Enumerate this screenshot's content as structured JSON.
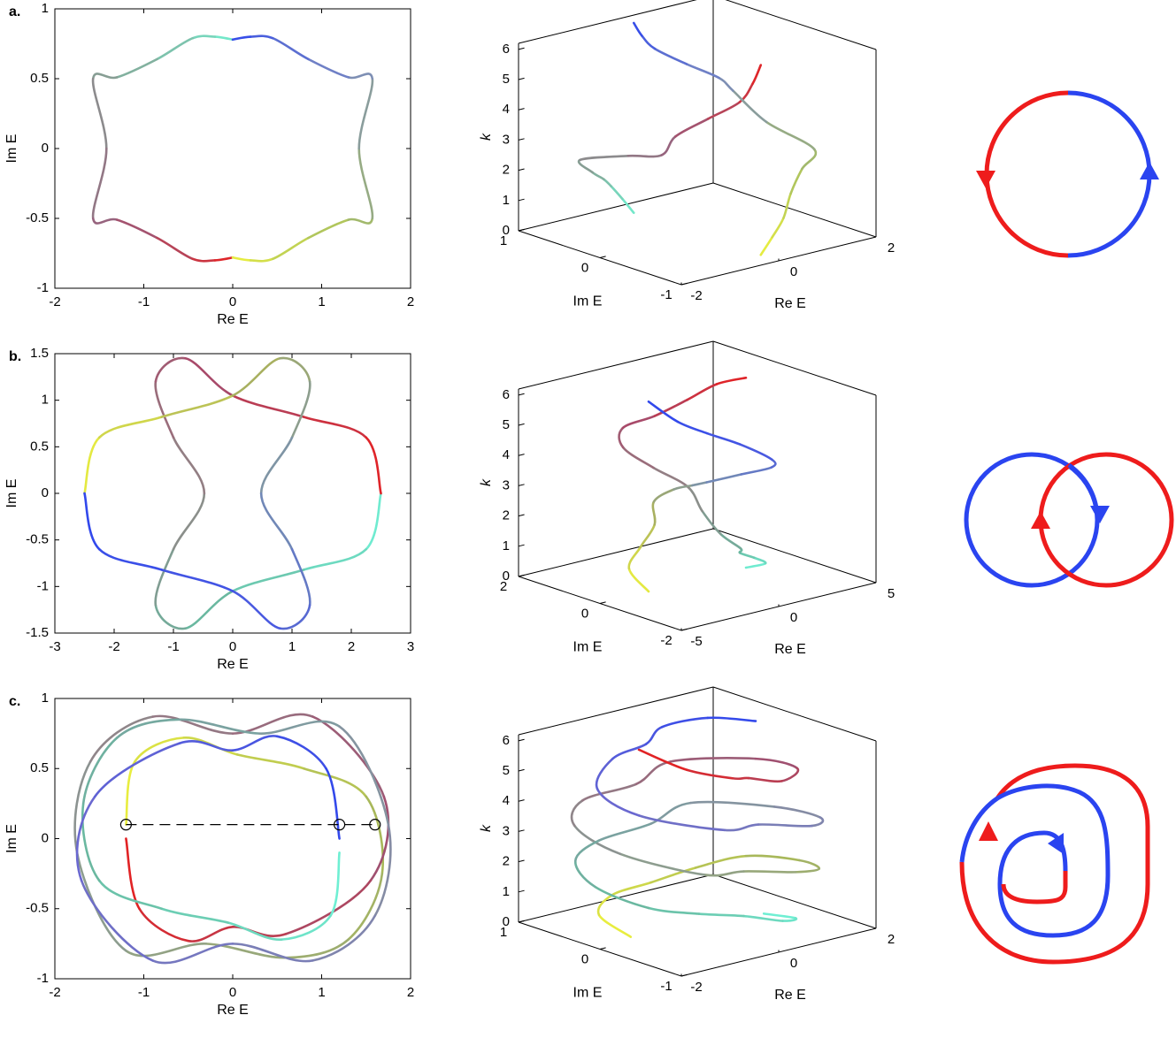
{
  "chart_data": [
    {
      "type": "line",
      "label": "a.",
      "xlabel": "Re E",
      "ylabel": "Im E",
      "zlabel": "k",
      "xlim": [
        -2,
        2
      ],
      "xticks": [
        -2,
        -1,
        0,
        1,
        2
      ],
      "ylim": [
        -1,
        1
      ],
      "yticks": [
        -1,
        -0.5,
        0,
        0.5,
        1
      ],
      "xlim3d": [
        -2,
        2
      ],
      "xticks3d": [
        -2,
        0,
        2
      ],
      "ylim3d": [
        -1,
        1
      ],
      "yticks3d": [
        -1,
        0,
        1
      ],
      "zlim": [
        0,
        6.2
      ],
      "zticks": [
        0,
        1,
        2,
        3,
        4,
        5,
        6
      ],
      "k": [
        0,
        0.52,
        1.05,
        1.57,
        2.09,
        2.62,
        3.14,
        3.67,
        4.19,
        4.71,
        5.24,
        5.76,
        6.28
      ],
      "series": [
        {
          "colors": [
            "#70f0d0",
            "#84a898",
            "#9a5a7a",
            "#e81e1e"
          ],
          "re": [
            0,
            -0.2,
            -0.45,
            -0.85,
            -1.3,
            -1.57,
            -1.42,
            -1.57,
            -1.3,
            -0.85,
            -0.45,
            -0.2,
            0
          ],
          "im": [
            0.78,
            0.8,
            0.79,
            0.64,
            0.51,
            0.5,
            0,
            -0.5,
            -0.51,
            -0.64,
            -0.79,
            -0.8,
            -0.78
          ]
        },
        {
          "colors": [
            "#eef23c",
            "#a8c060",
            "#7888c0",
            "#2e46ee"
          ],
          "re": [
            0,
            0.2,
            0.45,
            0.85,
            1.3,
            1.57,
            1.42,
            1.57,
            1.3,
            0.85,
            0.45,
            0.2,
            0
          ],
          "im": [
            -0.78,
            -0.8,
            -0.79,
            -0.64,
            -0.51,
            -0.5,
            0,
            0.5,
            0.51,
            0.64,
            0.79,
            0.8,
            0.78
          ]
        }
      ]
    },
    {
      "type": "line",
      "label": "b.",
      "xlabel": "Re E",
      "ylabel": "Im E",
      "zlabel": "k",
      "xlim": [
        -3,
        3
      ],
      "xticks": [
        -3,
        -2,
        -1,
        0,
        1,
        2,
        3
      ],
      "ylim": [
        -1.5,
        1.5
      ],
      "yticks": [
        -1.5,
        -1,
        -0.5,
        0,
        0.5,
        1,
        1.5
      ],
      "xlim3d": [
        -5,
        5
      ],
      "xticks3d": [
        -5,
        0,
        5
      ],
      "ylim3d": [
        -2,
        2
      ],
      "yticks3d": [
        -2,
        0,
        2
      ],
      "zlim": [
        0,
        6.2
      ],
      "zticks": [
        0,
        1,
        2,
        3,
        4,
        5,
        6
      ],
      "k": [
        0,
        0.45,
        0.9,
        1.35,
        1.8,
        2.24,
        2.69,
        3.14,
        3.59,
        4.04,
        4.49,
        4.94,
        5.39,
        5.84,
        6.28
      ],
      "series": [
        {
          "colors": [
            "#70f4d8",
            "#6ab8a0",
            "#908888",
            "#a84a6a",
            "#e81e1e"
          ],
          "re": [
            2.5,
            2.25,
            1.2,
            0,
            -0.8,
            -1.3,
            -1.0,
            -0.48,
            -1.0,
            -1.3,
            -0.8,
            0,
            1.2,
            2.25,
            2.5
          ],
          "im": [
            0,
            -0.6,
            -0.82,
            -1.05,
            -1.45,
            -1.2,
            -0.6,
            0,
            0.6,
            1.2,
            1.45,
            1.05,
            0.82,
            0.6,
            0
          ]
        },
        {
          "colors": [
            "#eef23c",
            "#a8b060",
            "#7890b0",
            "#4a5ae0",
            "#2e46ee"
          ],
          "re": [
            -2.5,
            -2.25,
            -1.2,
            0,
            0.8,
            1.3,
            1.0,
            0.48,
            1.0,
            1.3,
            0.8,
            0,
            -1.2,
            -2.25,
            -2.5
          ],
          "im": [
            0,
            0.6,
            0.82,
            1.05,
            1.45,
            1.2,
            0.6,
            0,
            -0.6,
            -1.2,
            -1.45,
            -1.05,
            -0.82,
            -0.6,
            0
          ]
        }
      ]
    },
    {
      "type": "line",
      "label": "c.",
      "xlabel": "Re E",
      "ylabel": "Im E",
      "zlabel": "k",
      "xlim": [
        -2,
        2
      ],
      "xticks": [
        -2,
        -1,
        0,
        1,
        2
      ],
      "ylim": [
        -1,
        1
      ],
      "yticks": [
        -1,
        -0.5,
        0,
        0.5,
        1
      ],
      "xlim3d": [
        -2,
        2
      ],
      "xticks3d": [
        -2,
        0,
        2
      ],
      "ylim3d": [
        -1,
        1
      ],
      "yticks3d": [
        -1,
        0,
        1
      ],
      "zlim": [
        0,
        6.2
      ],
      "zticks": [
        0,
        1,
        2,
        3,
        4,
        5,
        6
      ],
      "k": [
        0,
        0.29,
        0.57,
        0.86,
        1.14,
        1.43,
        1.71,
        2.0,
        2.28,
        2.57,
        2.86,
        3.14,
        3.43,
        3.71,
        4.0,
        4.28,
        4.57,
        4.85,
        5.14,
        5.43,
        5.71,
        6.0,
        6.28
      ],
      "series": [
        {
          "colors": [
            "#eef23c",
            "#a8b85a",
            "#8a9a94",
            "#a05070",
            "#e81e1e"
          ],
          "re": [
            -1.2,
            -1.1,
            -0.55,
            0.05,
            0.8,
            1.5,
            1.68,
            1.3,
            0.6,
            -0.3,
            -1.2,
            -1.75,
            -1.6,
            -0.9,
            0,
            0.9,
            1.7,
            1.55,
            0.6,
            0,
            -0.5,
            -1.05,
            -1.2
          ],
          "im": [
            0.1,
            0.55,
            0.72,
            0.6,
            0.5,
            0.3,
            -0.25,
            -0.72,
            -0.85,
            -0.75,
            -0.8,
            -0.1,
            0.55,
            0.87,
            0.75,
            0.87,
            0.3,
            -0.3,
            -0.68,
            -0.63,
            -0.73,
            -0.5,
            0
          ]
        },
        {
          "colors": [
            "#70f4d8",
            "#6ab8a0",
            "#8890a0",
            "#6a68d0",
            "#2e46ee"
          ],
          "re": [
            1.2,
            1.1,
            0.55,
            -0.05,
            -0.8,
            -1.5,
            -1.68,
            -1.3,
            -0.6,
            0.3,
            1.2,
            1.75,
            1.6,
            0.9,
            0,
            -0.9,
            -1.7,
            -1.55,
            -0.6,
            0,
            0.5,
            1.05,
            1.2
          ],
          "im": [
            -0.1,
            -0.55,
            -0.72,
            -0.6,
            -0.5,
            -0.3,
            0.25,
            0.72,
            0.85,
            0.75,
            0.8,
            0.1,
            -0.55,
            -0.87,
            -0.75,
            -0.87,
            -0.3,
            0.3,
            0.68,
            0.63,
            0.73,
            0.5,
            0
          ]
        }
      ],
      "markers": {
        "re": [
          -1.2,
          1.2,
          1.6
        ],
        "im": [
          0.1,
          0.1,
          0.1
        ]
      }
    }
  ]
}
